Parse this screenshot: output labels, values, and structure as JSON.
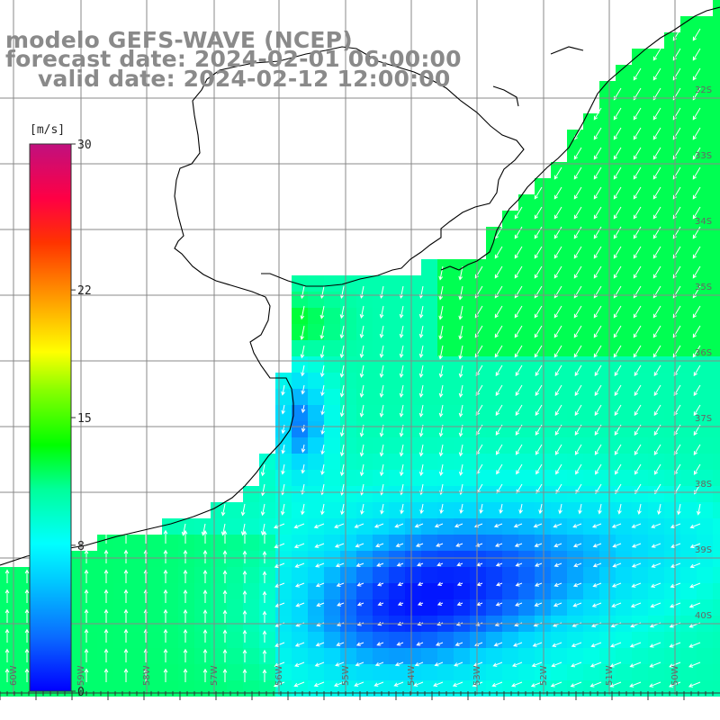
{
  "title": {
    "line1": "modelo GEFS-WAVE (NCEP)",
    "line2": "forecast date: 2024-02-01 06:00:00",
    "line3": "valid date: 2024-02-12 12:00:00"
  },
  "colorbar": {
    "unit": "[m/s]",
    "ticks": [
      "30",
      "22",
      "15",
      "8",
      "0"
    ],
    "tick_values": [
      30,
      22,
      15,
      8,
      0
    ],
    "min": 0,
    "max": 30,
    "colors": [
      "#0000ff",
      "#0a6cff",
      "#00d8ff",
      "#00ffe8",
      "#00ff88",
      "#00ff00",
      "#66ff00",
      "#ffff00",
      "#ffaa00",
      "#ff5500",
      "#ff0000",
      "#ff0066",
      "#c8007a"
    ]
  },
  "latitude_labels": [
    "32S",
    "33S",
    "34S",
    "35S",
    "36S",
    "37S",
    "38S",
    "39S",
    "40S"
  ],
  "longitude_labels": [
    "60W",
    "59W",
    "58W",
    "57W",
    "56W",
    "55W",
    "54W",
    "53W",
    "52W",
    "51W",
    "50W"
  ],
  "wind_field": {
    "variable": "wind speed at 10 m",
    "units": "m/s",
    "regions": [
      {
        "name": "southern Brazil coast",
        "speed_ms": 10.5,
        "direction": "from NE"
      },
      {
        "name": "Rio de la Plata",
        "speed_ms": 11,
        "direction": "from N"
      },
      {
        "name": "off Buenos Aires",
        "speed_ms": 4,
        "direction": "from NE"
      },
      {
        "name": "central ocean",
        "speed_ms": 2,
        "direction": "variable"
      },
      {
        "name": "southwest corner",
        "speed_ms": 10,
        "direction": "from S"
      }
    ]
  }
}
